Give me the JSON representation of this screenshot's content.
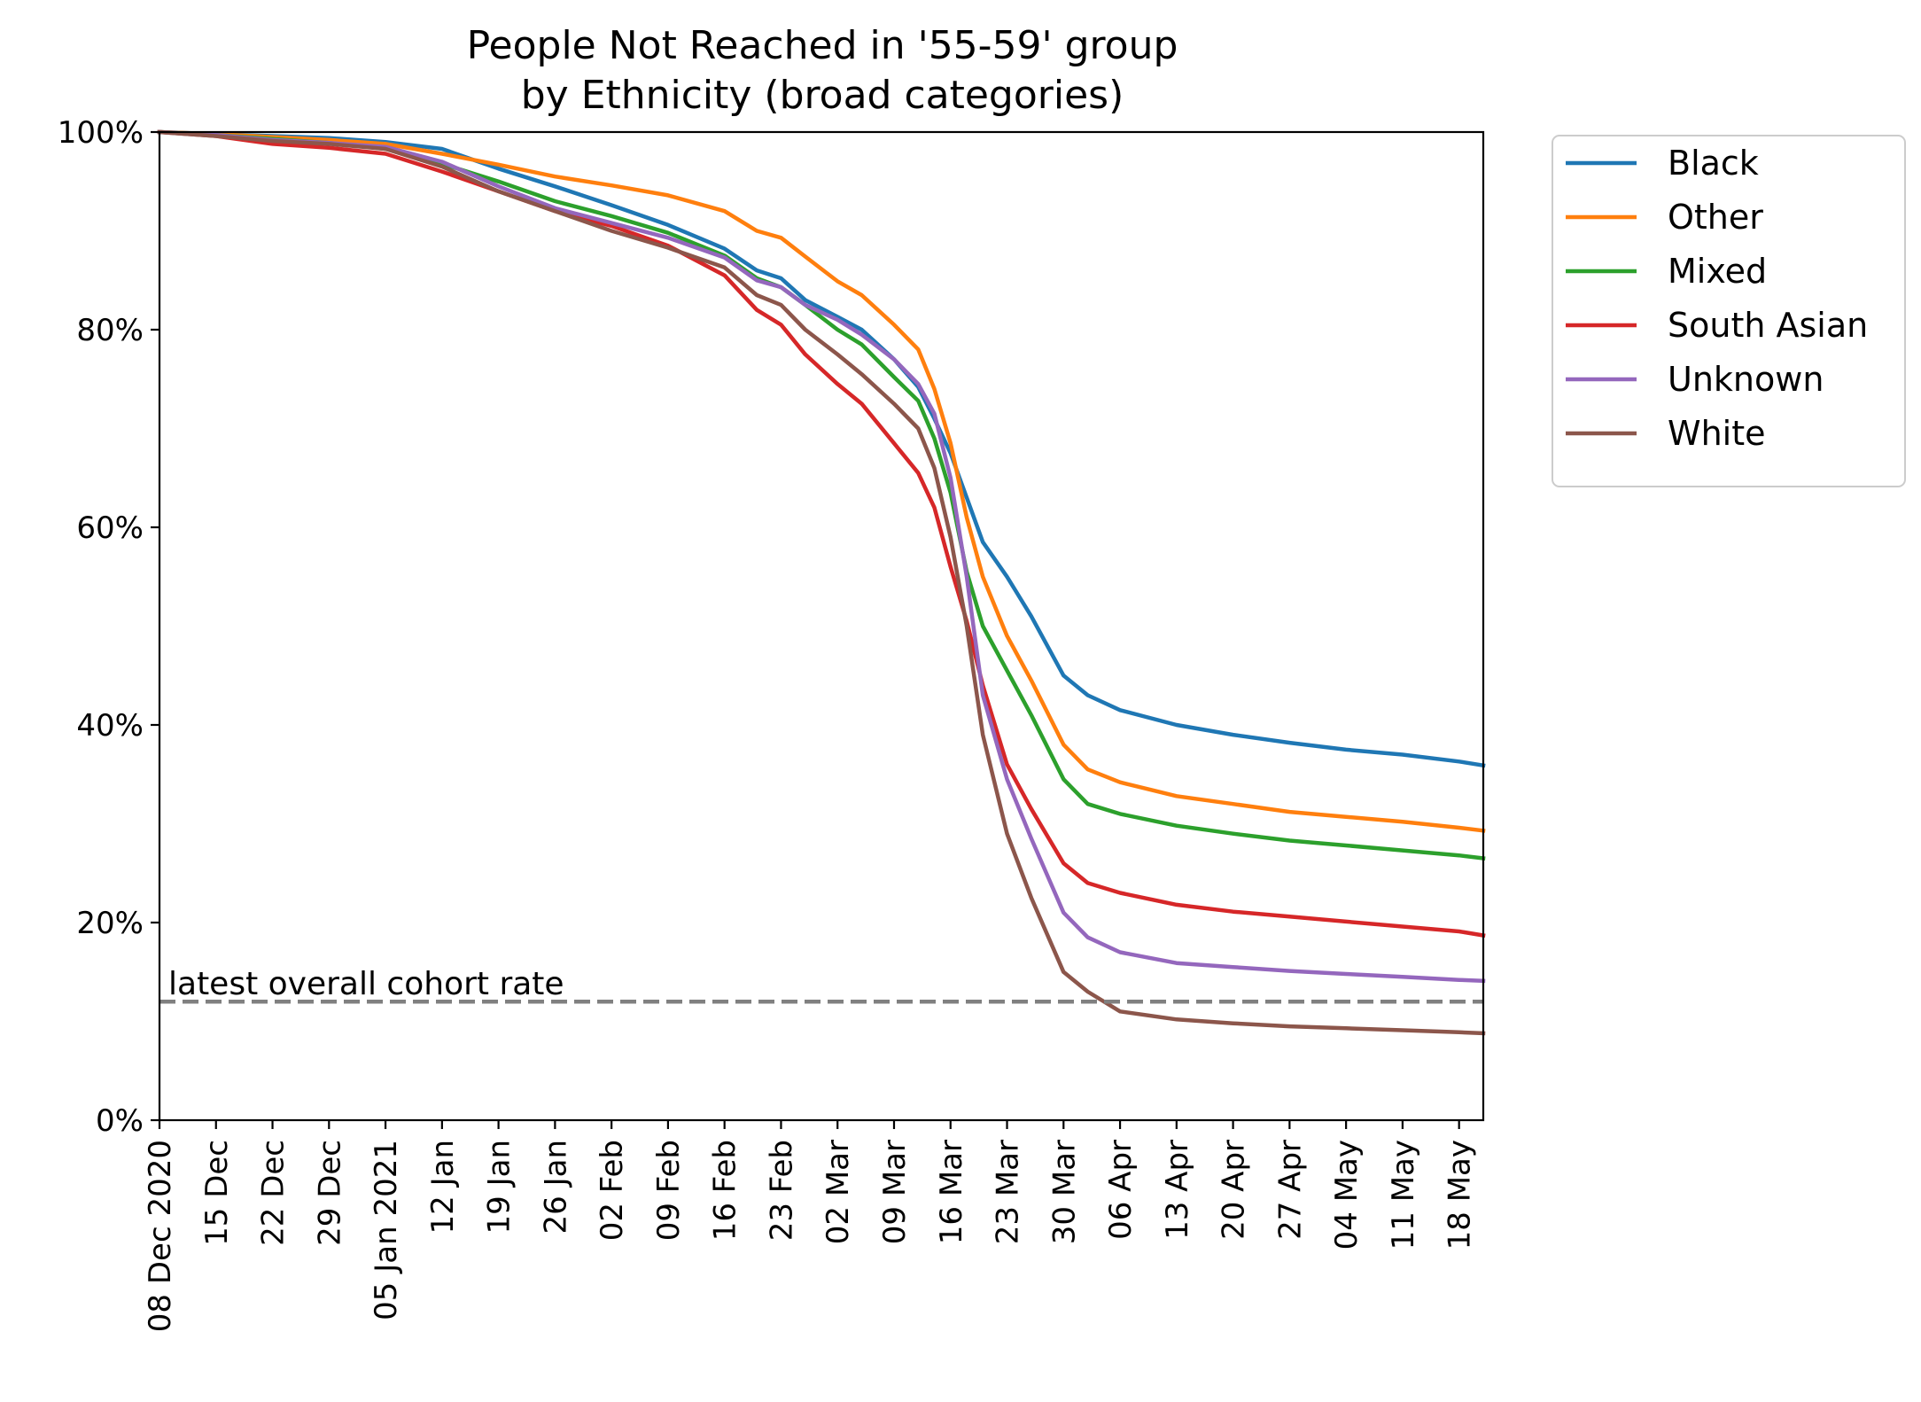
{
  "chart_data": {
    "type": "line",
    "title": "People Not Reached in '55-59' group",
    "subtitle": "by Ethnicity (broad categories)",
    "xlabel": "",
    "ylabel": "",
    "xlim": [
      "2020-12-08",
      "2021-05-21"
    ],
    "ylim": [
      0,
      100
    ],
    "y_ticks": [
      0,
      20,
      40,
      60,
      80,
      100
    ],
    "y_tick_labels": [
      "0%",
      "20%",
      "40%",
      "60%",
      "80%",
      "100%"
    ],
    "x_ticks": [
      "2020-12-08",
      "2020-12-15",
      "2020-12-22",
      "2020-12-29",
      "2021-01-05",
      "2021-01-12",
      "2021-01-19",
      "2021-01-26",
      "2021-02-02",
      "2021-02-09",
      "2021-02-16",
      "2021-02-23",
      "2021-03-02",
      "2021-03-09",
      "2021-03-16",
      "2021-03-23",
      "2021-03-30",
      "2021-04-06",
      "2021-04-13",
      "2021-04-20",
      "2021-04-27",
      "2021-05-04",
      "2021-05-11",
      "2021-05-18"
    ],
    "x_tick_labels": [
      "08 Dec 2020",
      "15 Dec",
      "22 Dec",
      "29 Dec",
      "05 Jan 2021",
      "12 Jan",
      "19 Jan",
      "26 Jan",
      "02 Feb",
      "09 Feb",
      "16 Feb",
      "23 Feb",
      "02 Mar",
      "09 Mar",
      "16 Mar",
      "23 Mar",
      "30 Mar",
      "06 Apr",
      "13 Apr",
      "20 Apr",
      "27 Apr",
      "04 May",
      "11 May",
      "18 May"
    ],
    "grid": false,
    "legend_position": "outside-top-right",
    "reference_line": {
      "value": 12,
      "label": "latest overall cohort rate",
      "color": "#808080",
      "style": "dashed"
    },
    "x": [
      "2020-12-08",
      "2020-12-15",
      "2020-12-22",
      "2020-12-29",
      "2021-01-05",
      "2021-01-12",
      "2021-01-19",
      "2021-01-26",
      "2021-02-02",
      "2021-02-09",
      "2021-02-16",
      "2021-02-20",
      "2021-02-23",
      "2021-02-26",
      "2021-03-02",
      "2021-03-05",
      "2021-03-09",
      "2021-03-12",
      "2021-03-14",
      "2021-03-16",
      "2021-03-18",
      "2021-03-20",
      "2021-03-23",
      "2021-03-26",
      "2021-03-30",
      "2021-04-02",
      "2021-04-06",
      "2021-04-13",
      "2021-04-20",
      "2021-04-27",
      "2021-05-04",
      "2021-05-11",
      "2021-05-18",
      "2021-05-21"
    ],
    "series": [
      {
        "name": "Black",
        "color": "#1f77b4",
        "values": [
          100,
          99.8,
          99.6,
          99.4,
          99.0,
          98.3,
          96.3,
          94.5,
          92.6,
          90.6,
          88.2,
          86.0,
          85.2,
          83.0,
          81.3,
          80.0,
          77.0,
          74.2,
          71.0,
          67.5,
          63.0,
          58.5,
          55.0,
          51.0,
          45.0,
          43.0,
          41.5,
          40.0,
          39.0,
          38.2,
          37.5,
          37.0,
          36.3,
          35.9
        ]
      },
      {
        "name": "Other",
        "color": "#ff7f0e",
        "values": [
          100,
          99.8,
          99.5,
          99.2,
          98.8,
          97.8,
          96.7,
          95.5,
          94.6,
          93.6,
          92.0,
          90.0,
          89.3,
          87.4,
          84.9,
          83.5,
          80.5,
          78.0,
          74.0,
          68.5,
          61.0,
          55.0,
          49.0,
          44.5,
          38.0,
          35.5,
          34.2,
          32.8,
          32.0,
          31.2,
          30.7,
          30.2,
          29.6,
          29.3
        ]
      },
      {
        "name": "Mixed",
        "color": "#2ca02c",
        "values": [
          100,
          99.7,
          99.3,
          98.9,
          98.3,
          96.8,
          95.0,
          93.0,
          91.5,
          89.8,
          87.5,
          85.2,
          84.3,
          82.5,
          80.0,
          78.5,
          75.2,
          72.8,
          69.0,
          63.5,
          55.5,
          50.0,
          45.5,
          41.0,
          34.5,
          32.0,
          31.0,
          29.8,
          29.0,
          28.3,
          27.8,
          27.3,
          26.8,
          26.5
        ]
      },
      {
        "name": "South Asian",
        "color": "#d62728",
        "values": [
          100,
          99.6,
          98.8,
          98.4,
          97.8,
          96.0,
          94.0,
          92.0,
          90.5,
          88.5,
          85.5,
          82.0,
          80.5,
          77.5,
          74.5,
          72.5,
          68.5,
          65.5,
          62.0,
          56.0,
          50.5,
          44.0,
          36.0,
          31.5,
          26.0,
          24.0,
          23.0,
          21.8,
          21.1,
          20.6,
          20.1,
          19.6,
          19.1,
          18.7
        ]
      },
      {
        "name": "Unknown",
        "color": "#9467bd",
        "values": [
          100,
          99.7,
          99.2,
          98.9,
          98.5,
          97.0,
          94.5,
          92.3,
          90.8,
          89.3,
          87.3,
          85.0,
          84.3,
          82.5,
          81.0,
          79.5,
          77.0,
          74.5,
          71.5,
          65.0,
          55.0,
          43.0,
          34.5,
          28.5,
          21.0,
          18.5,
          17.0,
          15.9,
          15.5,
          15.1,
          14.8,
          14.5,
          14.2,
          14.1
        ]
      },
      {
        "name": "White",
        "color": "#8c564b",
        "values": [
          100,
          99.6,
          99.1,
          98.8,
          98.3,
          96.5,
          94.0,
          92.0,
          90.0,
          88.3,
          86.3,
          83.5,
          82.5,
          80.0,
          77.5,
          75.5,
          72.5,
          70.0,
          66.0,
          59.0,
          50.0,
          39.0,
          29.0,
          22.5,
          15.0,
          13.0,
          11.0,
          10.2,
          9.8,
          9.5,
          9.3,
          9.1,
          8.9,
          8.8
        ]
      }
    ]
  }
}
